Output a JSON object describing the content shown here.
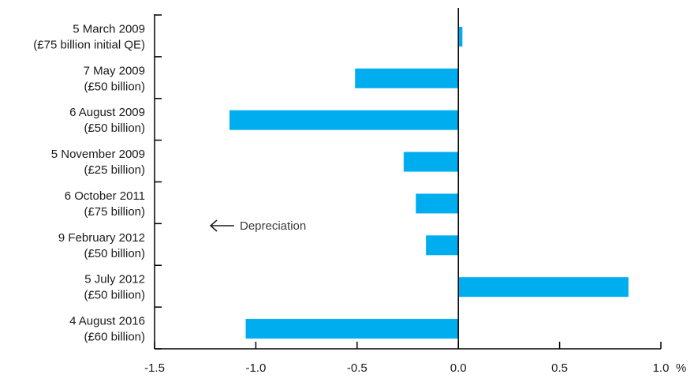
{
  "chart_data": {
    "type": "bar",
    "orientation": "horizontal",
    "categories": [
      [
        "5 March 2009",
        "(£75 billion initial QE)"
      ],
      [
        "7 May 2009",
        "(£50 billion)"
      ],
      [
        "6 August 2009",
        "(£50 billion)"
      ],
      [
        "5 November 2009",
        "(£25 billion)"
      ],
      [
        "6 October 2011",
        "(£75 billion)"
      ],
      [
        "9 February 2012",
        "(£50 billion)"
      ],
      [
        "5 July 2012",
        "(£50 billion)"
      ],
      [
        "4 August 2016",
        "(£60 billion)"
      ]
    ],
    "values": [
      0.02,
      -0.51,
      -1.13,
      -0.27,
      -0.21,
      -0.16,
      0.84,
      -1.05
    ],
    "xlim": [
      -1.5,
      1.0
    ],
    "xticks": [
      -1.5,
      -1.0,
      -0.5,
      0.0,
      0.5,
      1.0
    ],
    "xtick_labels": [
      "-1.5",
      "-1.0",
      "-0.5",
      "0.0",
      "0.5",
      "1.0"
    ],
    "xunit": "%",
    "annotation": "Depreciation",
    "bar_color": "#00aeef",
    "axis_color": "#000000",
    "grid": false
  }
}
